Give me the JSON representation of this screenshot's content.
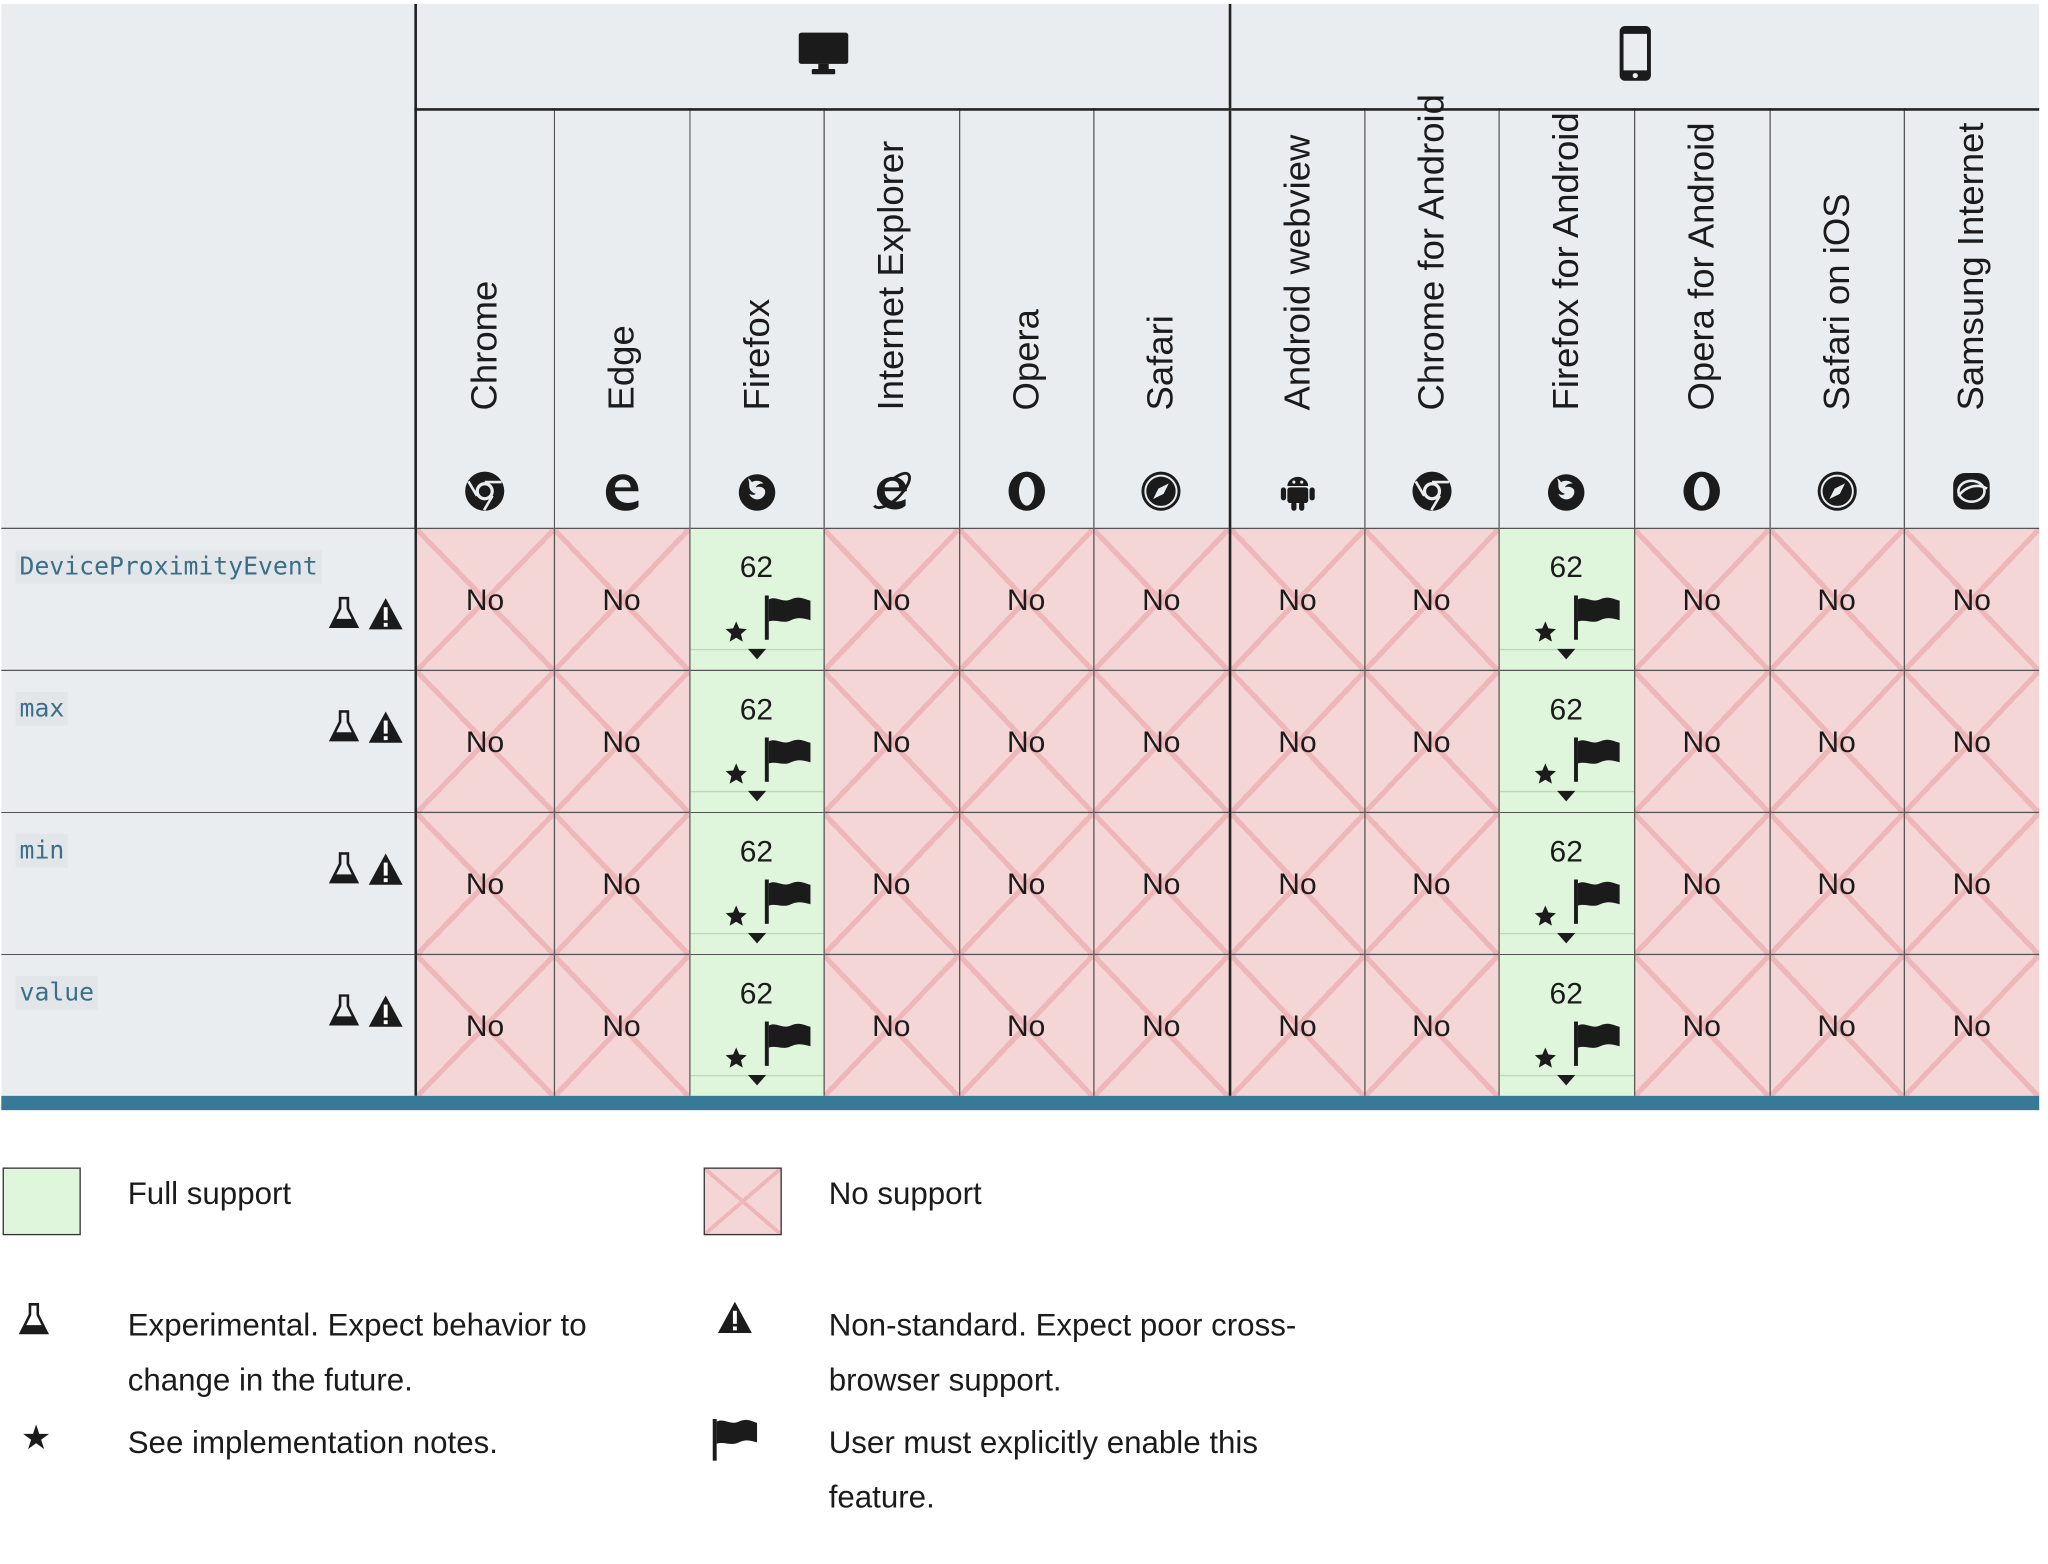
{
  "platforms": [
    {
      "name": "desktop-icon"
    },
    {
      "name": "mobile-icon"
    }
  ],
  "browsers": [
    {
      "label": "Chrome",
      "icon": "chrome-icon"
    },
    {
      "label": "Edge",
      "icon": "edge-icon"
    },
    {
      "label": "Firefox",
      "icon": "firefox-icon"
    },
    {
      "label": "Internet Explorer",
      "icon": "internet-explorer-icon"
    },
    {
      "label": "Opera",
      "icon": "opera-icon"
    },
    {
      "label": "Safari",
      "icon": "safari-icon"
    },
    {
      "label": "Android webview",
      "icon": "android-icon"
    },
    {
      "label": "Chrome for Android",
      "icon": "chrome-icon"
    },
    {
      "label": "Firefox for Android",
      "icon": "firefox-icon"
    },
    {
      "label": "Opera for Android",
      "icon": "opera-icon"
    },
    {
      "label": "Safari on iOS",
      "icon": "safari-icon"
    },
    {
      "label": "Samsung Internet",
      "icon": "samsung-internet-icon"
    }
  ],
  "features": [
    {
      "name": "DeviceProximityEvent",
      "experimental": true,
      "non_standard": true,
      "support": [
        "No",
        "No",
        "62",
        "No",
        "No",
        "No",
        "No",
        "No",
        "62",
        "No",
        "No",
        "No"
      ]
    },
    {
      "name": "max",
      "experimental": true,
      "non_standard": true,
      "support": [
        "No",
        "No",
        "62",
        "No",
        "No",
        "No",
        "No",
        "No",
        "62",
        "No",
        "No",
        "No"
      ]
    },
    {
      "name": "min",
      "experimental": true,
      "non_standard": true,
      "support": [
        "No",
        "No",
        "62",
        "No",
        "No",
        "No",
        "No",
        "No",
        "62",
        "No",
        "No",
        "No"
      ]
    },
    {
      "name": "value",
      "experimental": true,
      "non_standard": true,
      "support": [
        "No",
        "No",
        "62",
        "No",
        "No",
        "No",
        "No",
        "No",
        "62",
        "No",
        "No",
        "No"
      ]
    }
  ],
  "colors": {
    "full_support": "#dff5dc",
    "no_support": "#f5d6d7",
    "no_support_cross": "#eeb6b9",
    "header_bg": "#e9edef",
    "code_text": "#3a6f8c",
    "bottom_bar": "#367a98"
  },
  "legend": {
    "full_support": "Full support",
    "no_support": "No support",
    "experimental_line1": "Experimental. Expect behavior to",
    "experimental_line2": "change in the future.",
    "non_standard_line1": "Non-standard. Expect poor cross-",
    "non_standard_line2": "browser support.",
    "notes": "See implementation notes.",
    "flag_line1": "User must explicitly enable this",
    "flag_line2": "feature."
  }
}
